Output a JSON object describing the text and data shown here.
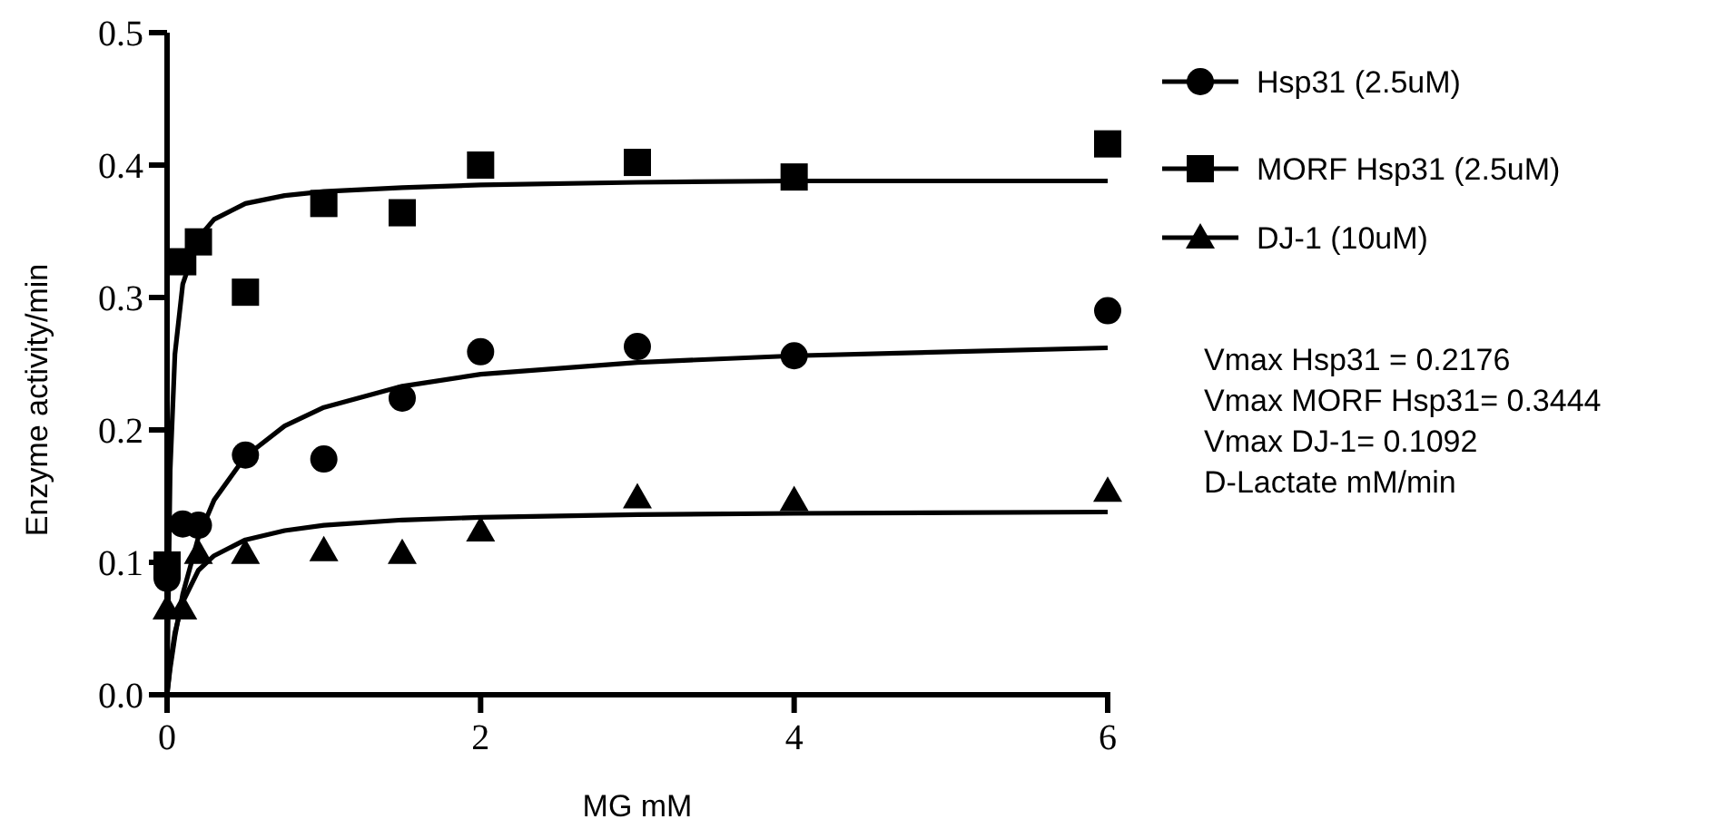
{
  "chart_data": {
    "type": "scatter",
    "xlabel": "MG mM",
    "ylabel": "Enzyme activity/min",
    "xlim": [
      0,
      6
    ],
    "ylim": [
      0,
      0.5
    ],
    "xticks": [
      0,
      2,
      4,
      6
    ],
    "yticks": [
      {
        "value": 0,
        "label": "0.0"
      },
      {
        "value": 0.1,
        "label": "0.1"
      },
      {
        "value": 0.2,
        "label": "0.2"
      },
      {
        "value": 0.3,
        "label": "0.3"
      },
      {
        "value": 0.4,
        "label": "0.4"
      },
      {
        "value": 0.5,
        "label": "0.5"
      }
    ],
    "grid": false,
    "legend": "right",
    "annotations": [
      "Vmax Hsp31 = 0.2176",
      "Vmax MORF Hsp31= 0.3444",
      "Vmax DJ-1= 0.1092",
      "D-Lactate mM/min"
    ],
    "series": [
      {
        "name": "Hsp31 (2.5uM)",
        "marker": "circle",
        "color": "#000000",
        "x": [
          0,
          0.1,
          0.2,
          0.5,
          1,
          1.5,
          2,
          3,
          4,
          6
        ],
        "values": [
          0.088,
          0.129,
          0.128,
          0.181,
          0.178,
          0.224,
          0.259,
          0.263,
          0.256,
          0.29
        ]
      },
      {
        "name": "MORF Hsp31 (2.5uM)",
        "marker": "square",
        "color": "#000000",
        "x": [
          0,
          0.1,
          0.2,
          0.5,
          1,
          1.5,
          2,
          3,
          4,
          6
        ],
        "values": [
          0.098,
          0.327,
          0.342,
          0.304,
          0.371,
          0.364,
          0.4,
          0.402,
          0.391,
          0.416
        ]
      },
      {
        "name": "DJ-1 (10uM)",
        "marker": "triangle",
        "color": "#000000",
        "x": [
          0,
          0.1,
          0.2,
          0.5,
          1,
          1.5,
          2,
          3,
          4,
          6
        ],
        "values": [
          0.065,
          0.065,
          0.107,
          0.107,
          0.109,
          0.107,
          0.124,
          0.149,
          0.147,
          0.154
        ]
      },
      {
        "type": "line",
        "color": "#000000",
        "x": [
          0,
          0.02,
          0.05,
          0.1,
          0.2,
          0.3,
          0.5,
          0.75,
          1,
          1.5,
          2,
          3,
          4,
          6
        ],
        "values": [
          0,
          0.02,
          0.044,
          0.076,
          0.119,
          0.147,
          0.18,
          0.203,
          0.217,
          0.233,
          0.242,
          0.251,
          0.256,
          0.262
        ]
      },
      {
        "type": "line",
        "color": "#000000",
        "x": [
          0,
          0.02,
          0.05,
          0.1,
          0.2,
          0.3,
          0.5,
          0.75,
          1,
          1.5,
          2,
          3,
          4,
          6
        ],
        "values": [
          0,
          0.17,
          0.257,
          0.31,
          0.345,
          0.359,
          0.371,
          0.377,
          0.38,
          0.383,
          0.385,
          0.387,
          0.388,
          0.388
        ]
      },
      {
        "type": "line",
        "color": "#000000",
        "x": [
          0,
          0.02,
          0.05,
          0.1,
          0.2,
          0.3,
          0.5,
          0.75,
          1,
          1.5,
          2,
          3,
          4,
          6
        ],
        "values": [
          0,
          0.023,
          0.047,
          0.07,
          0.094,
          0.105,
          0.117,
          0.124,
          0.128,
          0.132,
          0.134,
          0.136,
          0.137,
          0.138
        ]
      }
    ]
  }
}
